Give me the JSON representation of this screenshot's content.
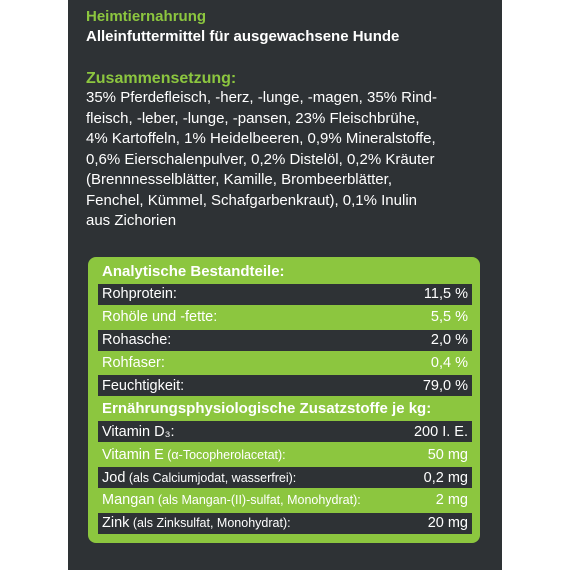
{
  "header": {
    "title": "Heimtiernahrung",
    "subtitle": "Alleinfuttermittel  für ausgewachsene Hunde"
  },
  "composition": {
    "title": "Zusammensetzung:",
    "lines": [
      "35% Pferdefleisch, -herz, -lunge, -magen, 35% Rind-",
      "fleisch, -leber, -lunge, -pansen, 23% Fleischbrühe,",
      "4% Kartoffeln, 1% Heidelbeeren, 0,9% Mineralstoffe,",
      "0,6% Eierschalenpulver, 0,2% Distelöl, 0,2% Kräuter",
      "(Brennnesselblätter, Kamille, Brombeerblätter,",
      "Fenchel, Kümmel, Schafgarbenkraut), 0,1% Inulin",
      "aus Zichorien"
    ]
  },
  "table": {
    "sections": [
      {
        "title": "Analytische Bestandteile:",
        "rows": [
          {
            "label": "Rohprotein:",
            "value": "11,5 %"
          },
          {
            "label": "Rohöle und -fette:",
            "value": "5,5 %"
          },
          {
            "label": "Rohasche:",
            "value": "2,0 %"
          },
          {
            "label": "Rohfaser:",
            "value": "0,4 %"
          },
          {
            "label": "Feuchtigkeit:",
            "value": "79,0 %"
          }
        ]
      },
      {
        "title": "Ernährungsphysiologische Zusatzstoffe je kg:",
        "rows": [
          {
            "label": "Vitamin D₃:",
            "value": "200 I. E."
          },
          {
            "label": "Vitamin E",
            "note": " (α-Tocopherolacetat):",
            "value": "50 mg"
          },
          {
            "label": "Jod",
            "note": " (als Calciumjodat, wasserfrei):",
            "value": "0,2 mg"
          },
          {
            "label": "Mangan",
            "note": " (als Mangan-(II)-sulfat, Monohydrat):",
            "value": "2 mg"
          },
          {
            "label": "Zink",
            "note": " (als Zinksulfat, Monohydrat):",
            "value": "20 mg"
          }
        ]
      }
    ]
  }
}
